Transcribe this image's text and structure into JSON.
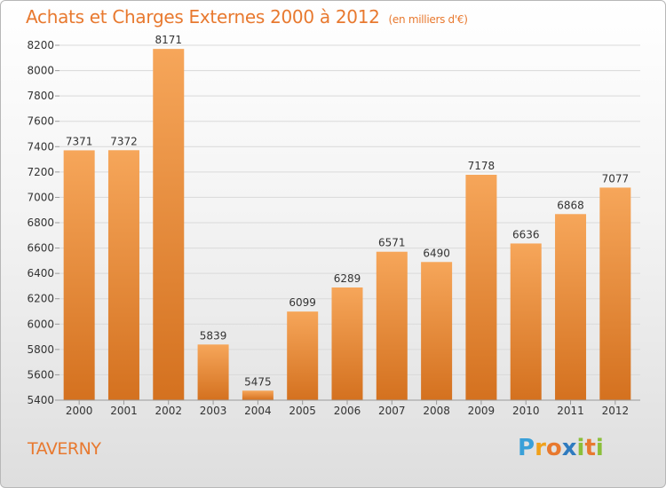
{
  "title": "Achats et Charges Externes 2000 à 2012",
  "unit": "(en milliers d'€)",
  "town": "TAVERNY",
  "logo": {
    "text": "Proxiti",
    "letters": [
      {
        "ch": "P",
        "color": "#3aa0d8"
      },
      {
        "ch": "r",
        "color": "#f0a11b"
      },
      {
        "ch": "o",
        "color": "#e8792f"
      },
      {
        "ch": "x",
        "color": "#2f7bbf"
      },
      {
        "ch": "i",
        "color": "#8bbf3a"
      },
      {
        "ch": "t",
        "color": "#e8792f"
      },
      {
        "ch": "i",
        "color": "#8bbf3a"
      }
    ]
  },
  "colors": {
    "accent": "#e8792f",
    "bar_top": "#f6a65a",
    "bar_bottom": "#d4711f",
    "grid": "#d9d9d9"
  },
  "chart_data": {
    "type": "bar",
    "title": "Achats et Charges Externes 2000 à 2012",
    "subtitle": "(en milliers d'€)",
    "categories": [
      "2000",
      "2001",
      "2002",
      "2003",
      "2004",
      "2005",
      "2006",
      "2007",
      "2008",
      "2009",
      "2010",
      "2011",
      "2012"
    ],
    "values": [
      7371,
      7372,
      8171,
      5839,
      5475,
      6099,
      6289,
      6571,
      6490,
      7178,
      6636,
      6868,
      7077
    ],
    "ylim": [
      5400,
      8200
    ],
    "yticks": [
      5400,
      5600,
      5800,
      6000,
      6200,
      6400,
      6600,
      6800,
      7000,
      7200,
      7400,
      7600,
      7800,
      8000,
      8200
    ],
    "xlabel": "",
    "ylabel": "",
    "grid": true,
    "data_labels": true
  }
}
